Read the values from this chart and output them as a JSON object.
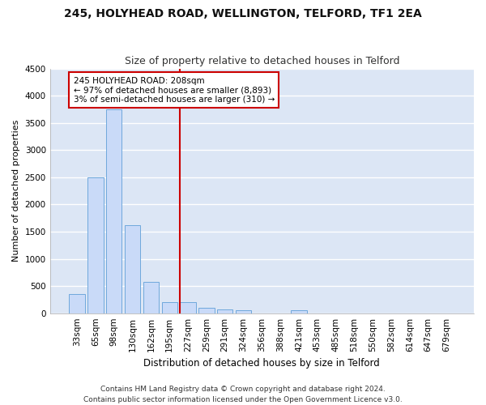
{
  "title1": "245, HOLYHEAD ROAD, WELLINGTON, TELFORD, TF1 2EA",
  "title2": "Size of property relative to detached houses in Telford",
  "xlabel": "Distribution of detached houses by size in Telford",
  "ylabel": "Number of detached properties",
  "categories": [
    "33sqm",
    "65sqm",
    "98sqm",
    "130sqm",
    "162sqm",
    "195sqm",
    "227sqm",
    "259sqm",
    "291sqm",
    "324sqm",
    "356sqm",
    "388sqm",
    "421sqm",
    "453sqm",
    "485sqm",
    "518sqm",
    "550sqm",
    "582sqm",
    "614sqm",
    "647sqm",
    "679sqm"
  ],
  "values": [
    350,
    2500,
    3750,
    1625,
    575,
    200,
    200,
    100,
    75,
    50,
    0,
    0,
    50,
    0,
    0,
    0,
    0,
    0,
    0,
    0,
    0
  ],
  "bar_color": "#c9daf8",
  "bar_edge_color": "#6fa8dc",
  "vline_x_index": 5.55,
  "vline_color": "#cc0000",
  "annotation_text": "245 HOLYHEAD ROAD: 208sqm\n← 97% of detached houses are smaller (8,893)\n3% of semi-detached houses are larger (310) →",
  "annotation_box_color": "#ffffff",
  "annotation_box_edge": "#cc0000",
  "ylim": [
    0,
    4500
  ],
  "yticks": [
    0,
    500,
    1000,
    1500,
    2000,
    2500,
    3000,
    3500,
    4000,
    4500
  ],
  "footer": "Contains HM Land Registry data © Crown copyright and database right 2024.\nContains public sector information licensed under the Open Government Licence v3.0.",
  "bg_color": "#dce6f5",
  "grid_color": "#ffffff",
  "title1_fontsize": 10,
  "title2_fontsize": 9,
  "xlabel_fontsize": 8.5,
  "ylabel_fontsize": 8,
  "tick_fontsize": 7.5,
  "annot_fontsize": 7.5,
  "footer_fontsize": 6.5
}
